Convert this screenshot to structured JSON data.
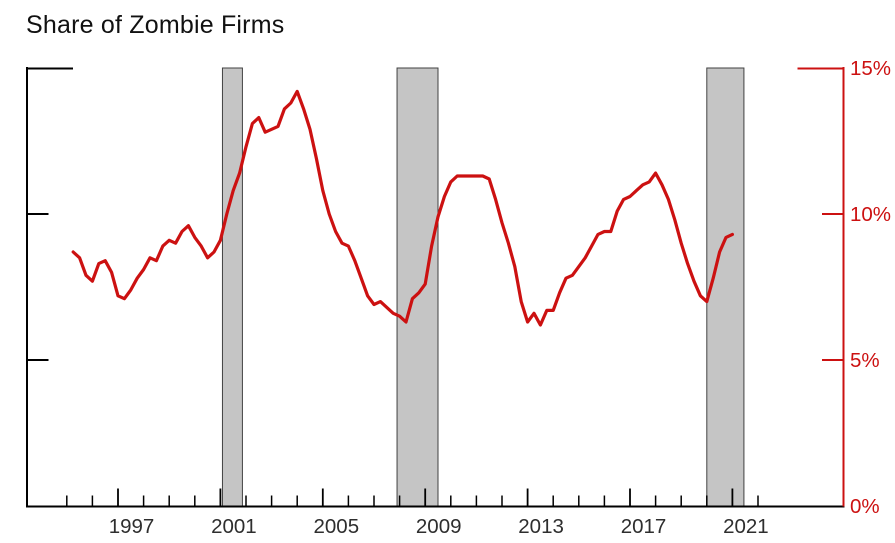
{
  "title": "Share of Zombie Firms",
  "colors": {
    "line": "#cc1111",
    "right_axis": "#cc1111",
    "left_axis": "#000000",
    "bottom_axis": "#000000",
    "band_fill": "#c5c5c5",
    "band_border": "#414141",
    "x_label": "#2e2e2e",
    "title": "#111111",
    "background": "#ffffff"
  },
  "chart_data": {
    "type": "line",
    "title": "Share of Zombie Firms",
    "xlabel": "",
    "ylabel": "",
    "y_unit": "percent",
    "ylim": [
      0,
      15
    ],
    "x_range_years": [
      1993.4,
      2025.3
    ],
    "grid": false,
    "legend": "none",
    "y_axis_side": "right",
    "y_ticks": [
      {
        "value": 15,
        "label": "15%"
      },
      {
        "value": 10,
        "label": "10%"
      },
      {
        "value": 5,
        "label": "5%"
      },
      {
        "value": 0,
        "label": "0%"
      }
    ],
    "x_tick_years": [
      1995,
      1996,
      1997,
      1998,
      1999,
      2000,
      2001,
      2002,
      2003,
      2004,
      2005,
      2006,
      2007,
      2008,
      2009,
      2010,
      2011,
      2012,
      2013,
      2014,
      2015,
      2016,
      2017,
      2018,
      2019,
      2020,
      2021,
      2022
    ],
    "x_major_tick_years": [
      1997,
      2001,
      2005,
      2009,
      2013,
      2017,
      2021
    ],
    "x_labels": [
      "1997",
      "2001",
      "2005",
      "2009",
      "2013",
      "2017",
      "2021"
    ],
    "recession_bands": [
      {
        "start": 2001.08,
        "end": 2001.86
      },
      {
        "start": 2007.9,
        "end": 2009.5
      },
      {
        "start": 2020.0,
        "end": 2021.45
      }
    ],
    "series": [
      {
        "name": "share-of-zombie-firms",
        "x": [
          1995.25,
          1995.5,
          1995.75,
          1996.0,
          1996.25,
          1996.5,
          1996.75,
          1997.0,
          1997.25,
          1997.5,
          1997.75,
          1998.0,
          1998.25,
          1998.5,
          1998.75,
          1999.0,
          1999.25,
          1999.5,
          1999.75,
          2000.0,
          2000.25,
          2000.5,
          2000.75,
          2001.0,
          2001.25,
          2001.5,
          2001.75,
          2002.0,
          2002.25,
          2002.5,
          2002.75,
          2003.0,
          2003.25,
          2003.5,
          2003.75,
          2004.0,
          2004.25,
          2004.5,
          2004.75,
          2005.0,
          2005.25,
          2005.5,
          2005.75,
          2006.0,
          2006.25,
          2006.5,
          2006.75,
          2007.0,
          2007.25,
          2007.5,
          2007.75,
          2008.0,
          2008.25,
          2008.5,
          2008.75,
          2009.0,
          2009.25,
          2009.5,
          2009.75,
          2010.0,
          2010.25,
          2010.5,
          2010.75,
          2011.0,
          2011.25,
          2011.5,
          2011.75,
          2012.0,
          2012.25,
          2012.5,
          2012.75,
          2013.0,
          2013.25,
          2013.5,
          2013.75,
          2014.0,
          2014.25,
          2014.5,
          2014.75,
          2015.0,
          2015.25,
          2015.5,
          2015.75,
          2016.0,
          2016.25,
          2016.5,
          2016.75,
          2017.0,
          2017.25,
          2017.5,
          2017.75,
          2018.0,
          2018.25,
          2018.5,
          2018.75,
          2019.0,
          2019.25,
          2019.5,
          2019.75,
          2020.0,
          2020.25,
          2020.5,
          2020.75,
          2021.0
        ],
        "y": [
          8.7,
          8.5,
          7.9,
          7.7,
          8.3,
          8.4,
          8.0,
          7.2,
          7.1,
          7.4,
          7.8,
          8.1,
          8.5,
          8.4,
          8.9,
          9.1,
          9.0,
          9.4,
          9.6,
          9.2,
          8.9,
          8.5,
          8.7,
          9.1,
          10.0,
          10.8,
          11.4,
          12.3,
          13.1,
          13.3,
          12.8,
          12.9,
          13.0,
          13.6,
          13.8,
          14.2,
          13.6,
          12.9,
          11.9,
          10.8,
          10.0,
          9.4,
          9.0,
          8.9,
          8.4,
          7.8,
          7.2,
          6.9,
          7.0,
          6.8,
          6.6,
          6.5,
          6.3,
          7.1,
          7.3,
          7.6,
          8.9,
          9.9,
          10.6,
          11.1,
          11.3,
          11.3,
          11.3,
          11.3,
          11.3,
          11.2,
          10.5,
          9.7,
          9.0,
          8.2,
          7.0,
          6.3,
          6.6,
          6.2,
          6.7,
          6.7,
          7.3,
          7.8,
          7.9,
          8.2,
          8.5,
          8.9,
          9.3,
          9.4,
          9.4,
          10.1,
          10.5,
          10.6,
          10.8,
          11.0,
          11.1,
          11.4,
          11.0,
          10.5,
          9.8,
          9.0,
          8.3,
          7.7,
          7.2,
          7.0,
          7.8,
          8.7,
          9.2,
          9.3
        ]
      }
    ]
  }
}
